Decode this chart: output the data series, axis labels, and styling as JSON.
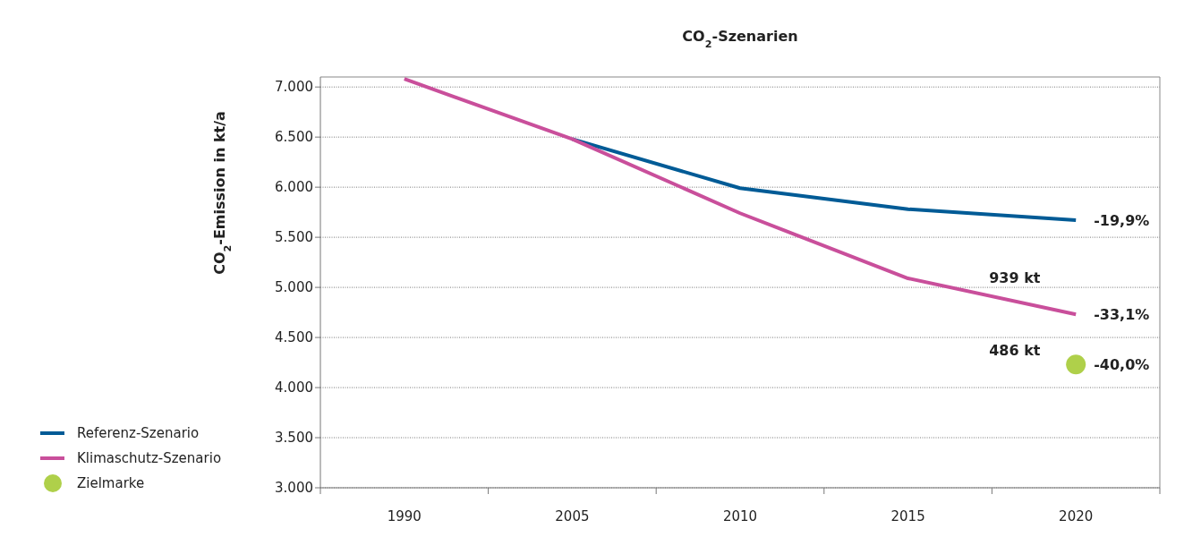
{
  "chart_data": {
    "type": "line",
    "title": "CO$_{2}$-Szenarien",
    "ylabel": "CO$_{2}$-Emission in kt/a",
    "categories": [
      "1990",
      "2005",
      "2010",
      "2015",
      "2020"
    ],
    "series": [
      {
        "name": "Referenz-Szenario",
        "color": "#005b96",
        "values": [
          null,
          6480,
          5990,
          5780,
          5670
        ]
      },
      {
        "name": "Klimaschutz-Szenario",
        "color": "#c94f9b",
        "values": [
          7080,
          6480,
          5740,
          5090,
          4730
        ]
      },
      {
        "name": "Zielmarke",
        "type": "scatter",
        "marker": "circle",
        "color": "#afd04a",
        "values": [
          null,
          null,
          null,
          null,
          4230
        ]
      }
    ],
    "ylim": [
      3000,
      7100
    ],
    "yticks": [
      {
        "value": 3000,
        "label": "3.000"
      },
      {
        "value": 3500,
        "label": "3.500"
      },
      {
        "value": 4000,
        "label": "4.000"
      },
      {
        "value": 4500,
        "label": "4.500"
      },
      {
        "value": 5000,
        "label": "5.000"
      },
      {
        "value": 5500,
        "label": "5.500"
      },
      {
        "value": 6000,
        "label": "6.000"
      },
      {
        "value": 6500,
        "label": "6.500"
      },
      {
        "value": 7000,
        "label": "7.000"
      }
    ],
    "annotations": [
      {
        "text": "-19,9%",
        "x": "2020",
        "y": 5670
      },
      {
        "text": "-33,1%",
        "x": "2020",
        "y": 4730
      },
      {
        "text": "-40,0%",
        "x": "2020",
        "y": 4230
      },
      "939 kt",
      "486 kt"
    ],
    "grid": "y",
    "legend": "bottom left",
    "line_style": "solid"
  }
}
